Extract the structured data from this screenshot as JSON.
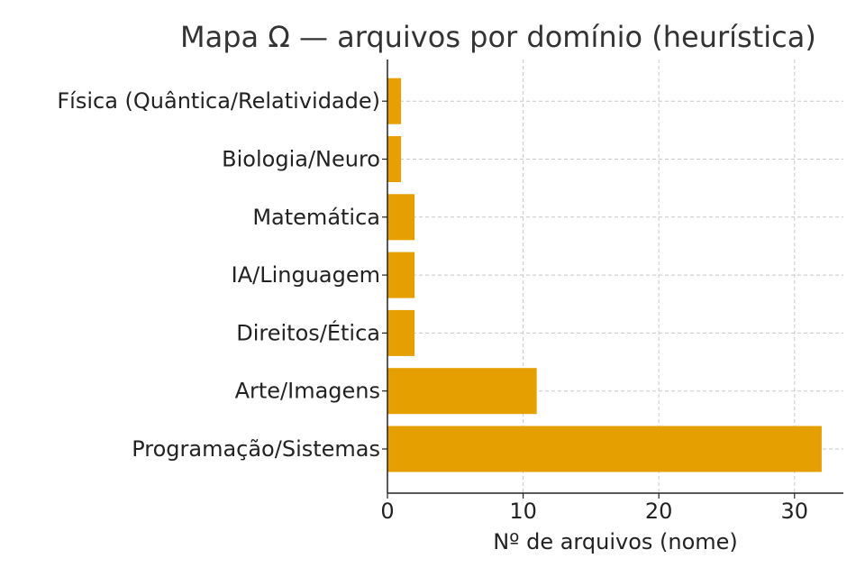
{
  "chart_data": {
    "type": "bar",
    "orientation": "horizontal",
    "title": "Mapa Ω — arquivos por domínio (heurística)",
    "xlabel": "Nº de arquivos (nome)",
    "ylabel": "",
    "categories": [
      "Programação/Sistemas",
      "Arte/Imagens",
      "Direitos/Ética",
      "IA/Linguagem",
      "Matemática",
      "Biologia/Neuro",
      "Física (Quântica/Relatividade)"
    ],
    "values": [
      32,
      11,
      2,
      2,
      2,
      1,
      1
    ],
    "xlim": [
      0,
      33.6
    ],
    "xticks": [
      0,
      10,
      20,
      30
    ],
    "grid": true,
    "bar_color": "#E69F00"
  }
}
